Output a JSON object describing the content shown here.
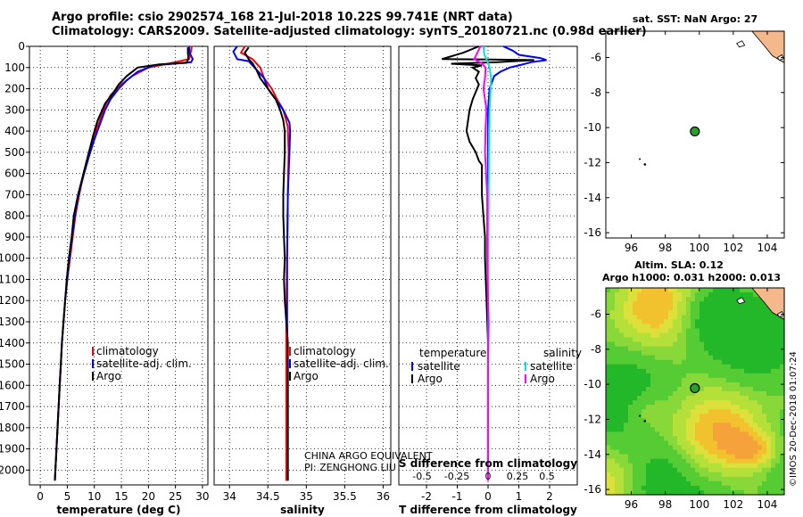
{
  "header": {
    "line1": "Argo profile: csio 2902574_168 21-Jul-2018 10.22S 99.741E (NRT data)",
    "line2": "Climatology: CARS2009. Satellite-adjusted climatology: synTS_20180721.nc (0.98d earlier)"
  },
  "chart_data": [
    {
      "type": "line",
      "name": "temperature-profile",
      "xlabel": "temperature (deg C)",
      "ylabel": "",
      "xlim": [
        -2,
        31
      ],
      "ylim": [
        2070,
        0
      ],
      "xticks": [
        0,
        5,
        10,
        15,
        20,
        25,
        30
      ],
      "yticks": [
        0,
        100,
        200,
        300,
        400,
        500,
        600,
        700,
        800,
        900,
        1000,
        1100,
        1200,
        1300,
        1400,
        1500,
        1600,
        1700,
        1800,
        1900,
        2000
      ],
      "legend": [
        "climatology",
        "satellite-adj. clim.",
        "Argo"
      ],
      "series": [
        {
          "name": "climatology",
          "color": "#ff0000",
          "points": [
            [
              28.0,
              0
            ],
            [
              27.9,
              20
            ],
            [
              27.5,
              60
            ],
            [
              24,
              80
            ],
            [
              20,
              100
            ],
            [
              17,
              140
            ],
            [
              15,
              180
            ],
            [
              13,
              230
            ],
            [
              12,
              280
            ],
            [
              11,
              350
            ],
            [
              10,
              420
            ],
            [
              9,
              500
            ],
            [
              8,
              600
            ],
            [
              7.2,
              700
            ],
            [
              6.5,
              800
            ],
            [
              6,
              900
            ],
            [
              5.5,
              1000
            ],
            [
              5,
              1100
            ],
            [
              4.6,
              1200
            ],
            [
              4.3,
              1300
            ],
            [
              4,
              1400
            ],
            [
              3.8,
              1500
            ],
            [
              3.6,
              1600
            ],
            [
              3.4,
              1700
            ],
            [
              3.2,
              1800
            ],
            [
              3,
              1900
            ],
            [
              2.8,
              2000
            ],
            [
              2.7,
              2050
            ]
          ]
        },
        {
          "name": "satellite-adj. clim.",
          "color": "#0000ff",
          "points": [
            [
              27.5,
              0
            ],
            [
              27.6,
              30
            ],
            [
              28.2,
              60
            ],
            [
              27.9,
              75
            ],
            [
              21,
              90
            ],
            [
              18,
              120
            ],
            [
              16,
              160
            ],
            [
              14.5,
              200
            ],
            [
              13,
              250
            ],
            [
              12,
              300
            ],
            [
              11,
              370
            ],
            [
              10,
              440
            ],
            [
              9,
              520
            ],
            [
              8,
              610
            ],
            [
              7,
              710
            ],
            [
              6.4,
              800
            ],
            [
              5.9,
              900
            ],
            [
              5.4,
              1000
            ],
            [
              5,
              1100
            ],
            [
              4.6,
              1200
            ],
            [
              4.3,
              1300
            ],
            [
              4,
              1400
            ],
            [
              3.8,
              1500
            ],
            [
              3.6,
              1600
            ],
            [
              3.4,
              1700
            ],
            [
              3.2,
              1800
            ],
            [
              3,
              1900
            ],
            [
              2.8,
              2000
            ],
            [
              2.7,
              2050
            ]
          ]
        },
        {
          "name": "Argo",
          "color": "#000000",
          "points": [
            [
              27.3,
              5
            ],
            [
              27.3,
              30
            ],
            [
              27.4,
              60
            ],
            [
              27,
              78
            ],
            [
              22,
              85
            ],
            [
              18,
              100
            ],
            [
              16,
              140
            ],
            [
              14.5,
              180
            ],
            [
              13.5,
              220
            ],
            [
              12,
              270
            ],
            [
              10.6,
              350
            ],
            [
              9.8,
              420
            ],
            [
              9,
              500
            ],
            [
              8,
              600
            ],
            [
              7,
              700
            ],
            [
              6.2,
              800
            ],
            [
              5.8,
              900
            ],
            [
              5.3,
              1000
            ],
            [
              4.9,
              1100
            ],
            [
              4.6,
              1200
            ],
            [
              4.3,
              1300
            ],
            [
              4,
              1400
            ],
            [
              3.8,
              1500
            ],
            [
              3.6,
              1600
            ],
            [
              3.4,
              1700
            ],
            [
              3.2,
              1800
            ],
            [
              3,
              1900
            ],
            [
              2.8,
              2000
            ],
            [
              2.7,
              2050
            ]
          ]
        }
      ]
    },
    {
      "type": "line",
      "name": "salinity-profile",
      "xlabel": "salinity",
      "xlim": [
        33.8,
        36.1
      ],
      "ylim": [
        2070,
        0
      ],
      "xticks": [
        34,
        34.5,
        35,
        35.5,
        36
      ],
      "legend": [
        "climatology",
        "satellite-adj. clim.",
        "Argo"
      ],
      "series": [
        {
          "name": "climatology",
          "color": "#ff0000",
          "points": [
            [
              34.2,
              0
            ],
            [
              34.15,
              30
            ],
            [
              34.3,
              60
            ],
            [
              34.4,
              100
            ],
            [
              34.45,
              150
            ],
            [
              34.55,
              200
            ],
            [
              34.62,
              250
            ],
            [
              34.7,
              300
            ],
            [
              34.76,
              380
            ],
            [
              34.77,
              500
            ],
            [
              34.76,
              700
            ],
            [
              34.75,
              1000
            ],
            [
              34.74,
              1300
            ],
            [
              34.74,
              1500
            ],
            [
              34.74,
              1800
            ],
            [
              34.74,
              2050
            ]
          ]
        },
        {
          "name": "satellite-adj. clim.",
          "color": "#0000ff",
          "points": [
            [
              34.1,
              0
            ],
            [
              34.05,
              25
            ],
            [
              34.1,
              60
            ],
            [
              34.25,
              70
            ],
            [
              34.35,
              110
            ],
            [
              34.45,
              150
            ],
            [
              34.5,
              200
            ],
            [
              34.6,
              250
            ],
            [
              34.7,
              300
            ],
            [
              34.78,
              360
            ],
            [
              34.79,
              400
            ],
            [
              34.78,
              500
            ],
            [
              34.76,
              700
            ],
            [
              34.75,
              1000
            ],
            [
              34.75,
              1300
            ],
            [
              34.76,
              1500
            ],
            [
              34.76,
              1800
            ],
            [
              34.76,
              2050
            ]
          ]
        },
        {
          "name": "Argo",
          "color": "#000000",
          "points": [
            [
              34.25,
              5
            ],
            [
              34.2,
              30
            ],
            [
              34.25,
              60
            ],
            [
              34.3,
              80
            ],
            [
              34.35,
              110
            ],
            [
              34.4,
              150
            ],
            [
              34.5,
              200
            ],
            [
              34.6,
              250
            ],
            [
              34.66,
              300
            ],
            [
              34.7,
              350
            ],
            [
              34.72,
              400
            ],
            [
              34.72,
              500
            ],
            [
              34.71,
              600
            ],
            [
              34.7,
              700
            ],
            [
              34.7,
              800
            ],
            [
              34.71,
              900
            ],
            [
              34.72,
              1000
            ],
            [
              34.71,
              1100
            ],
            [
              34.72,
              1200
            ],
            [
              34.74,
              1300
            ],
            [
              34.76,
              1400
            ],
            [
              34.76,
              1500
            ],
            [
              34.76,
              1600
            ],
            [
              34.76,
              1800
            ],
            [
              34.76,
              2050
            ]
          ]
        }
      ],
      "annotations": [
        "CHINA ARGO EQUIVALENT",
        "PI: ZENGHONG LIU"
      ]
    },
    {
      "type": "line",
      "name": "difference-profile",
      "xlabel": "T difference from climatology",
      "secondary_xlabel": "S difference from climatology",
      "xlim": [
        -2.9,
        2.9
      ],
      "ylim": [
        2070,
        0
      ],
      "xticks": [
        -2,
        -1,
        0,
        1,
        2
      ],
      "secondary_ticks": [
        "-0.5",
        "-0.25",
        "0",
        "0.25",
        "0.5"
      ],
      "legend_left_title": "temperature",
      "legend_right_title": "salinity",
      "legend_left": [
        "satellite",
        "Argo"
      ],
      "legend_right": [
        "satellite",
        "Argo"
      ],
      "series": [
        {
          "name": "T satellite",
          "color": "#0000ff",
          "points": [
            [
              0.5,
              0
            ],
            [
              0.8,
              20
            ],
            [
              1.0,
              40
            ],
            [
              1.7,
              55
            ],
            [
              1.9,
              65
            ],
            [
              1.4,
              75
            ],
            [
              1.0,
              90
            ],
            [
              0.7,
              100
            ],
            [
              0.4,
              120
            ],
            [
              0.2,
              140
            ],
            [
              0.15,
              160
            ],
            [
              0.1,
              180
            ],
            [
              0.05,
              200
            ],
            [
              0.0,
              300
            ],
            [
              0.0,
              400
            ],
            [
              0.0,
              600
            ],
            [
              0.0,
              1000
            ],
            [
              0.0,
              1500
            ],
            [
              0.0,
              2050
            ]
          ]
        },
        {
          "name": "T Argo",
          "color": "#000000",
          "points": [
            [
              -0.3,
              0
            ],
            [
              -0.8,
              30
            ],
            [
              -1.5,
              60
            ],
            [
              0.0,
              62
            ],
            [
              1.5,
              65
            ],
            [
              0.3,
              75
            ],
            [
              -1.2,
              82
            ],
            [
              -0.2,
              90
            ],
            [
              -0.5,
              100
            ],
            [
              -0.3,
              120
            ],
            [
              -0.4,
              150
            ],
            [
              -0.3,
              180
            ],
            [
              -0.5,
              250
            ],
            [
              -0.6,
              300
            ],
            [
              -0.7,
              400
            ],
            [
              -0.6,
              450
            ],
            [
              -0.4,
              500
            ],
            [
              -0.3,
              540
            ],
            [
              -0.2,
              560
            ],
            [
              -0.2,
              600
            ],
            [
              -0.2,
              700
            ],
            [
              -0.15,
              800
            ],
            [
              -0.1,
              900
            ],
            [
              -0.1,
              1000
            ],
            [
              -0.05,
              1200
            ],
            [
              0.0,
              1400
            ],
            [
              0.0,
              1600
            ],
            [
              0.0,
              2050
            ]
          ]
        },
        {
          "name": "S satellite",
          "color": "#00e0e0",
          "points": [
            [
              -0.15,
              0
            ],
            [
              -0.12,
              40
            ],
            [
              -0.05,
              60
            ],
            [
              0.05,
              100
            ],
            [
              0.1,
              150
            ],
            [
              0.08,
              200
            ],
            [
              0.05,
              300
            ],
            [
              0.03,
              400
            ],
            [
              0.02,
              600
            ],
            [
              0.01,
              1000
            ],
            [
              0.0,
              2050
            ]
          ]
        },
        {
          "name": "S Argo",
          "color": "#ff00ff",
          "points": [
            [
              -0.25,
              0
            ],
            [
              -0.45,
              60
            ],
            [
              -0.2,
              80
            ],
            [
              -0.08,
              100
            ],
            [
              -0.1,
              150
            ],
            [
              -0.15,
              200
            ],
            [
              -0.1,
              250
            ],
            [
              -0.05,
              300
            ],
            [
              -0.08,
              380
            ],
            [
              -0.1,
              500
            ],
            [
              -0.03,
              700
            ],
            [
              -0.03,
              1000
            ],
            [
              -0.02,
              1100
            ],
            [
              0.02,
              1300
            ],
            [
              0.0,
              1500
            ],
            [
              0.0,
              1700
            ],
            [
              0.0,
              2050
            ]
          ]
        }
      ]
    },
    {
      "type": "scatter",
      "name": "sst-map",
      "title": "sat. SST: NaN Argo: 27",
      "xlim": [
        94.5,
        105
      ],
      "ylim": [
        -16.3,
        -4.5
      ],
      "xticks": [
        96,
        98,
        100,
        102,
        104
      ],
      "yticks": [
        -6,
        -8,
        -10,
        -12,
        -14,
        -16
      ],
      "xtick_labels": [
        "96",
        "98",
        "100",
        "102",
        "104"
      ],
      "ytick_labels": [
        "-6",
        "-8",
        "-10",
        "-12",
        "-14",
        "-16"
      ],
      "points": [
        {
          "lon": 99.741,
          "lat": -10.22,
          "label": "Argo float"
        }
      ]
    },
    {
      "type": "heatmap",
      "name": "sla-map",
      "title_line1": "Altim. SLA: 0.12",
      "title_line2": "Argo h1000: 0.031 h2000: 0.013",
      "xlim": [
        94.5,
        105
      ],
      "ylim": [
        -16.3,
        -4.5
      ],
      "xticks": [
        96,
        98,
        100,
        102,
        104
      ],
      "yticks": [
        -6,
        -8,
        -10,
        -12,
        -14,
        -16
      ],
      "xtick_labels": [
        "96",
        "98",
        "100",
        "102",
        "104"
      ],
      "ytick_labels": [
        "-6",
        "-8",
        "-10",
        "-12",
        "-14",
        "-16"
      ],
      "points": [
        {
          "lon": 99.741,
          "lat": -10.22,
          "label": "Argo float"
        }
      ]
    }
  ],
  "footer": {
    "credit": "©IMOS 20-Dec-2018 01:07:24"
  },
  "colors": {
    "climatology": "#ff0000",
    "satellite": "#0000ff",
    "argo": "#000000",
    "s_satellite": "#00e0e0",
    "s_argo": "#ff00ff",
    "land": "#f5b88a",
    "blank_map": "#ffffff"
  }
}
